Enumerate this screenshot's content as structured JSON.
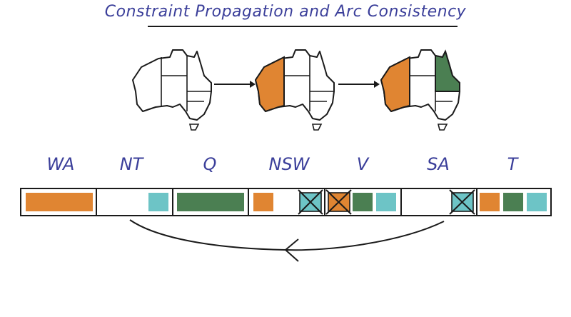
{
  "title": "Constraint Propagation and Arc Consistency",
  "colors": {
    "orange": "#e08532",
    "green": "#4b7f52",
    "teal": "#6dc4c6",
    "ink": "#1a1a1a",
    "label": "#3b3f9a"
  },
  "maps": [
    {
      "step": 1,
      "WA": "none",
      "Q": "none"
    },
    {
      "step": 2,
      "WA": "orange",
      "Q": "none"
    },
    {
      "step": 3,
      "WA": "orange",
      "Q": "green"
    }
  ],
  "variables": [
    {
      "name": "WA",
      "domain": [
        {
          "color": "orange",
          "crossed": false
        }
      ]
    },
    {
      "name": "NT",
      "domain": [
        {
          "color": "teal",
          "crossed": false
        }
      ]
    },
    {
      "name": "Q",
      "domain": [
        {
          "color": "green",
          "crossed": false
        }
      ]
    },
    {
      "name": "NSW",
      "domain": [
        {
          "color": "orange",
          "crossed": false
        },
        {
          "color": "teal",
          "crossed": true
        }
      ]
    },
    {
      "name": "V",
      "domain": [
        {
          "color": "orange",
          "crossed": true
        },
        {
          "color": "green",
          "crossed": false
        },
        {
          "color": "teal",
          "crossed": false
        }
      ]
    },
    {
      "name": "SA",
      "domain": [
        {
          "color": "teal",
          "crossed": true
        }
      ]
    },
    {
      "name": "T",
      "domain": [
        {
          "color": "orange",
          "crossed": false
        },
        {
          "color": "green",
          "crossed": false
        },
        {
          "color": "teal",
          "crossed": false
        }
      ]
    }
  ],
  "arc": {
    "from": "SA",
    "to": "WA",
    "direction": "left"
  }
}
